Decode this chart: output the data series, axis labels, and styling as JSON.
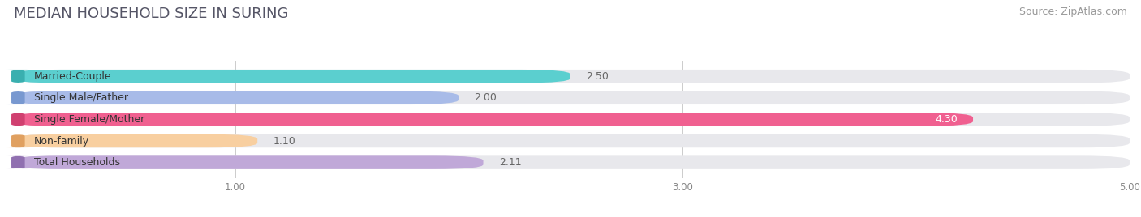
{
  "title": "MEDIAN HOUSEHOLD SIZE IN SURING",
  "source": "Source: ZipAtlas.com",
  "categories": [
    "Married-Couple",
    "Single Male/Father",
    "Single Female/Mother",
    "Non-family",
    "Total Households"
  ],
  "values": [
    2.5,
    2.0,
    4.3,
    1.1,
    2.11
  ],
  "bar_colors": [
    "#5BCFCF",
    "#A8BBE8",
    "#F06090",
    "#F8CFA0",
    "#C0A8D8"
  ],
  "bar_border_colors": [
    "#3AAFAF",
    "#7898D0",
    "#D04070",
    "#E0A060",
    "#9070B0"
  ],
  "bar_bg_color": "#E8E8EC",
  "xlim": [
    0,
    5.0
  ],
  "xticks": [
    1.0,
    3.0,
    5.0
  ],
  "title_fontsize": 13,
  "source_fontsize": 9,
  "label_fontsize": 9,
  "value_fontsize": 9,
  "bar_height": 0.62,
  "fig_bg_color": "#FFFFFF"
}
